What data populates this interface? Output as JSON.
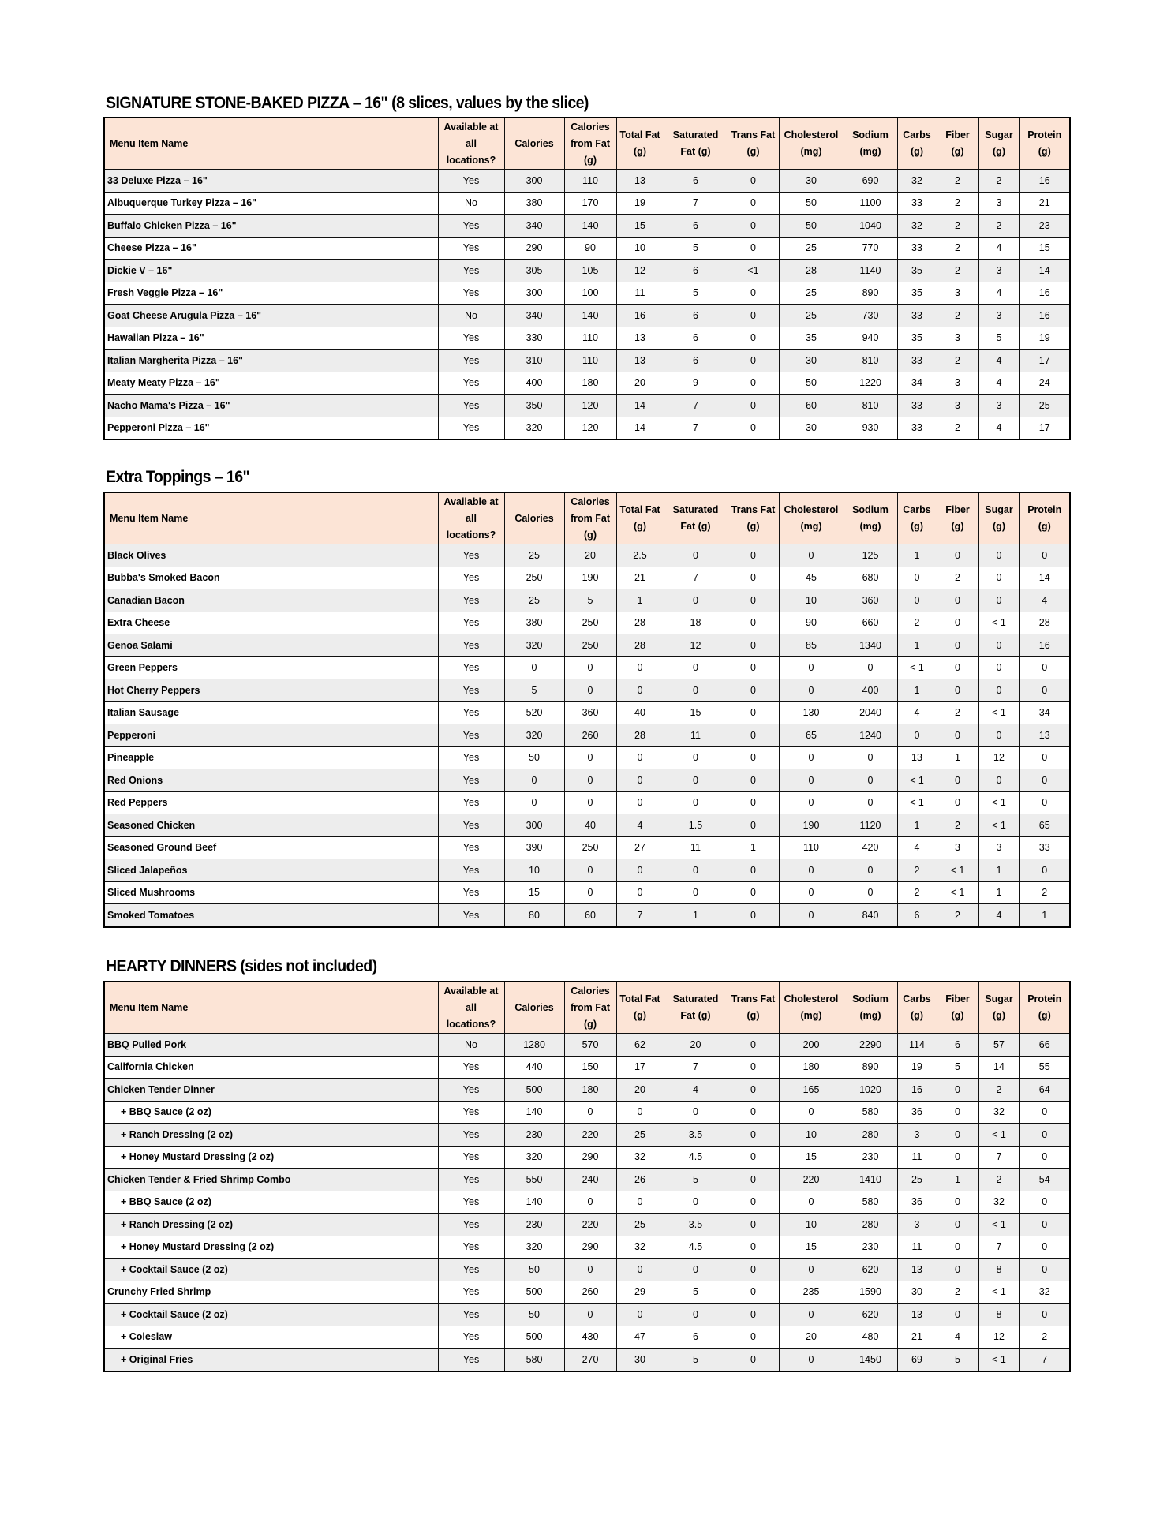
{
  "columns": [
    "Menu Item Name",
    "Available at all locations?",
    "Calories",
    "Calories from Fat (g)",
    "Total Fat (g)",
    "Saturated Fat (g)",
    "Trans Fat (g)",
    "Cholesterol (mg)",
    "Sodium (mg)",
    "Carbs (g)",
    "Fiber (g)",
    "Sugar (g)",
    "Protein (g)"
  ],
  "header_bg": "#fce4d6",
  "row_shade": "#ededed",
  "sections": [
    {
      "title": "SIGNATURE STONE-BAKED PIZZA – 16\" (8 slices, values by the slice)",
      "rows": [
        [
          "33 Deluxe Pizza – 16\"",
          "Yes",
          "300",
          "110",
          "13",
          "6",
          "0",
          "30",
          "690",
          "32",
          "2",
          "2",
          "16"
        ],
        [
          "Albuquerque Turkey Pizza – 16\"",
          "No",
          "380",
          "170",
          "19",
          "7",
          "0",
          "50",
          "1100",
          "33",
          "2",
          "3",
          "21"
        ],
        [
          "Buffalo Chicken Pizza – 16\"",
          "Yes",
          "340",
          "140",
          "15",
          "6",
          "0",
          "50",
          "1040",
          "32",
          "2",
          "2",
          "23"
        ],
        [
          "Cheese Pizza – 16\"",
          "Yes",
          "290",
          "90",
          "10",
          "5",
          "0",
          "25",
          "770",
          "33",
          "2",
          "4",
          "15"
        ],
        [
          "Dickie V – 16\"",
          "Yes",
          "305",
          "105",
          "12",
          "6",
          "<1",
          "28",
          "1140",
          "35",
          "2",
          "3",
          "14"
        ],
        [
          "Fresh Veggie Pizza – 16\"",
          "Yes",
          "300",
          "100",
          "11",
          "5",
          "0",
          "25",
          "890",
          "35",
          "3",
          "4",
          "16"
        ],
        [
          "Goat Cheese Arugula Pizza – 16\"",
          "No",
          "340",
          "140",
          "16",
          "6",
          "0",
          "25",
          "730",
          "33",
          "2",
          "3",
          "16"
        ],
        [
          "Hawaiian Pizza – 16\"",
          "Yes",
          "330",
          "110",
          "13",
          "6",
          "0",
          "35",
          "940",
          "35",
          "3",
          "5",
          "19"
        ],
        [
          "Italian Margherita Pizza – 16\"",
          "Yes",
          "310",
          "110",
          "13",
          "6",
          "0",
          "30",
          "810",
          "33",
          "2",
          "4",
          "17"
        ],
        [
          "Meaty Meaty Pizza – 16\"",
          "Yes",
          "400",
          "180",
          "20",
          "9",
          "0",
          "50",
          "1220",
          "34",
          "3",
          "4",
          "24"
        ],
        [
          "Nacho Mama's Pizza – 16\"",
          "Yes",
          "350",
          "120",
          "14",
          "7",
          "0",
          "60",
          "810",
          "33",
          "3",
          "3",
          "25"
        ],
        [
          "Pepperoni Pizza – 16\"",
          "Yes",
          "320",
          "120",
          "14",
          "7",
          "0",
          "30",
          "930",
          "33",
          "2",
          "4",
          "17"
        ]
      ]
    },
    {
      "title": "Extra Toppings – 16\"",
      "rows": [
        [
          "Black Olives",
          "Yes",
          "25",
          "20",
          "2.5",
          "0",
          "0",
          "0",
          "125",
          "1",
          "0",
          "0",
          "0"
        ],
        [
          "Bubba's Smoked Bacon",
          "Yes",
          "250",
          "190",
          "21",
          "7",
          "0",
          "45",
          "680",
          "0",
          "2",
          "0",
          "14"
        ],
        [
          "Canadian Bacon",
          "Yes",
          "25",
          "5",
          "1",
          "0",
          "0",
          "10",
          "360",
          "0",
          "0",
          "0",
          "4"
        ],
        [
          "Extra Cheese",
          "Yes",
          "380",
          "250",
          "28",
          "18",
          "0",
          "90",
          "660",
          "2",
          "0",
          "< 1",
          "28"
        ],
        [
          "Genoa Salami",
          "Yes",
          "320",
          "250",
          "28",
          "12",
          "0",
          "85",
          "1340",
          "1",
          "0",
          "0",
          "16"
        ],
        [
          "Green Peppers",
          "Yes",
          "0",
          "0",
          "0",
          "0",
          "0",
          "0",
          "0",
          "< 1",
          "0",
          "0",
          "0"
        ],
        [
          "Hot Cherry Peppers",
          "Yes",
          "5",
          "0",
          "0",
          "0",
          "0",
          "0",
          "400",
          "1",
          "0",
          "0",
          "0"
        ],
        [
          "Italian Sausage",
          "Yes",
          "520",
          "360",
          "40",
          "15",
          "0",
          "130",
          "2040",
          "4",
          "2",
          "< 1",
          "34"
        ],
        [
          "Pepperoni",
          "Yes",
          "320",
          "260",
          "28",
          "11",
          "0",
          "65",
          "1240",
          "0",
          "0",
          "0",
          "13"
        ],
        [
          "Pineapple",
          "Yes",
          "50",
          "0",
          "0",
          "0",
          "0",
          "0",
          "0",
          "13",
          "1",
          "12",
          "0"
        ],
        [
          "Red Onions",
          "Yes",
          "0",
          "0",
          "0",
          "0",
          "0",
          "0",
          "0",
          "< 1",
          "0",
          "0",
          "0"
        ],
        [
          "Red Peppers",
          "Yes",
          "0",
          "0",
          "0",
          "0",
          "0",
          "0",
          "0",
          "< 1",
          "0",
          "< 1",
          "0"
        ],
        [
          "Seasoned Chicken",
          "Yes",
          "300",
          "40",
          "4",
          "1.5",
          "0",
          "190",
          "1120",
          "1",
          "2",
          "< 1",
          "65"
        ],
        [
          "Seasoned Ground Beef",
          "Yes",
          "390",
          "250",
          "27",
          "11",
          "1",
          "110",
          "420",
          "4",
          "3",
          "3",
          "33"
        ],
        [
          "Sliced Jalapeños",
          "Yes",
          "10",
          "0",
          "0",
          "0",
          "0",
          "0",
          "0",
          "2",
          "< 1",
          "1",
          "0"
        ],
        [
          "Sliced Mushrooms",
          "Yes",
          "15",
          "0",
          "0",
          "0",
          "0",
          "0",
          "0",
          "2",
          "< 1",
          "1",
          "2"
        ],
        [
          "Smoked Tomatoes",
          "Yes",
          "80",
          "60",
          "7",
          "1",
          "0",
          "0",
          "840",
          "6",
          "2",
          "4",
          "1"
        ]
      ]
    },
    {
      "title": "HEARTY DINNERS (sides not included)",
      "rows": [
        [
          "BBQ Pulled Pork",
          "No",
          "1280",
          "570",
          "62",
          "20",
          "0",
          "200",
          "2290",
          "114",
          "6",
          "57",
          "66"
        ],
        [
          "California Chicken",
          "Yes",
          "440",
          "150",
          "17",
          "7",
          "0",
          "180",
          "890",
          "19",
          "5",
          "14",
          "55"
        ],
        [
          "Chicken Tender Dinner",
          "Yes",
          "500",
          "180",
          "20",
          "4",
          "0",
          "165",
          "1020",
          "16",
          "0",
          "2",
          "64"
        ],
        [
          "+ BBQ Sauce (2 oz)",
          "Yes",
          "140",
          "0",
          "0",
          "0",
          "0",
          "0",
          "580",
          "36",
          "0",
          "32",
          "0"
        ],
        [
          "+ Ranch Dressing (2 oz)",
          "Yes",
          "230",
          "220",
          "25",
          "3.5",
          "0",
          "10",
          "280",
          "3",
          "0",
          "< 1",
          "0"
        ],
        [
          "+ Honey Mustard Dressing (2 oz)",
          "Yes",
          "320",
          "290",
          "32",
          "4.5",
          "0",
          "15",
          "230",
          "11",
          "0",
          "7",
          "0"
        ],
        [
          "Chicken Tender & Fried Shrimp Combo",
          "Yes",
          "550",
          "240",
          "26",
          "5",
          "0",
          "220",
          "1410",
          "25",
          "1",
          "2",
          "54"
        ],
        [
          "+ BBQ Sauce (2 oz)",
          "Yes",
          "140",
          "0",
          "0",
          "0",
          "0",
          "0",
          "580",
          "36",
          "0",
          "32",
          "0"
        ],
        [
          "+ Ranch Dressing (2 oz)",
          "Yes",
          "230",
          "220",
          "25",
          "3.5",
          "0",
          "10",
          "280",
          "3",
          "0",
          "< 1",
          "0"
        ],
        [
          "+ Honey Mustard Dressing (2 oz)",
          "Yes",
          "320",
          "290",
          "32",
          "4.5",
          "0",
          "15",
          "230",
          "11",
          "0",
          "7",
          "0"
        ],
        [
          "+ Cocktail Sauce (2 oz)",
          "Yes",
          "50",
          "0",
          "0",
          "0",
          "0",
          "0",
          "620",
          "13",
          "0",
          "8",
          "0"
        ],
        [
          "Crunchy Fried Shrimp",
          "Yes",
          "500",
          "260",
          "29",
          "5",
          "0",
          "235",
          "1590",
          "30",
          "2",
          "< 1",
          "32"
        ],
        [
          "+ Cocktail Sauce (2 oz)",
          "Yes",
          "50",
          "0",
          "0",
          "0",
          "0",
          "0",
          "620",
          "13",
          "0",
          "8",
          "0"
        ],
        [
          "+ Coleslaw",
          "Yes",
          "500",
          "430",
          "47",
          "6",
          "0",
          "20",
          "480",
          "21",
          "4",
          "12",
          "2"
        ],
        [
          "+ Original Fries",
          "Yes",
          "580",
          "270",
          "30",
          "5",
          "0",
          "0",
          "1450",
          "69",
          "5",
          "< 1",
          "7"
        ]
      ]
    }
  ]
}
